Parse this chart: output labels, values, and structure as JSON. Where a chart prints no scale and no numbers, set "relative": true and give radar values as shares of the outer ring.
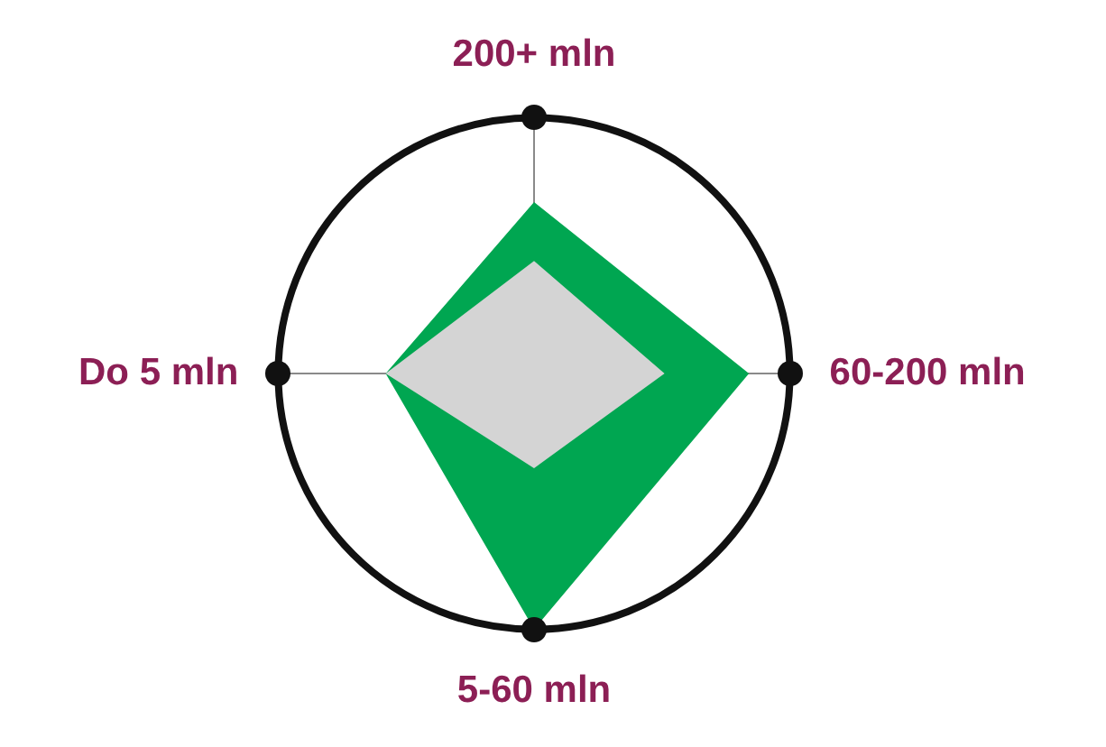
{
  "chart_data": {
    "type": "radar",
    "relative": true,
    "categories": [
      "200+ mln",
      "60-200 mln",
      "5-60 mln",
      "Do 5 mln"
    ],
    "series": [
      {
        "color": "#00a651",
        "values": [
          0.67,
          0.84,
          1.0,
          0.58
        ]
      },
      {
        "color": "#d4d4d4",
        "values": [
          0.44,
          0.51,
          0.37,
          0.58
        ]
      }
    ],
    "legend": false
  }
}
